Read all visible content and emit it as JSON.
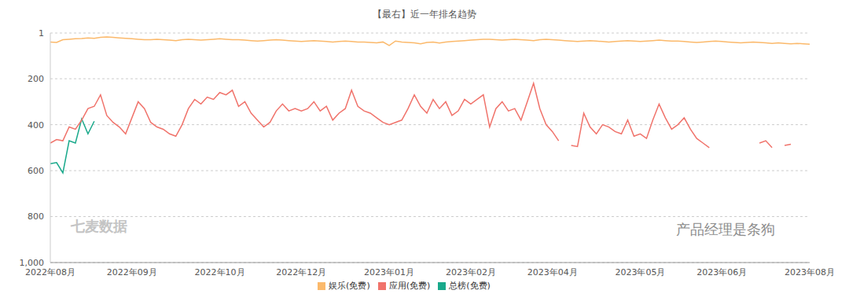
{
  "chart_data": {
    "type": "line",
    "title": "【最右】近一年排名趋势",
    "annotations": [
      "七麦数据",
      "产品经理是条狗"
    ],
    "categories": [
      "2022年08月",
      null,
      null,
      null,
      null,
      null,
      null,
      null,
      null,
      null,
      null,
      null,
      null,
      "2022年09月",
      null,
      null,
      null,
      null,
      null,
      null,
      null,
      null,
      null,
      null,
      null,
      null,
      null,
      "2022年10月",
      null,
      null,
      null,
      null,
      null,
      null,
      null,
      null,
      null,
      null,
      null,
      null,
      "2022年12月",
      null,
      null,
      null,
      null,
      null,
      null,
      null,
      null,
      null,
      null,
      null,
      null,
      null,
      "2023年01月",
      null,
      null,
      null,
      null,
      null,
      null,
      null,
      null,
      null,
      null,
      null,
      null,
      "2023年02月",
      null,
      null,
      null,
      null,
      null,
      null,
      null,
      null,
      null,
      null,
      null,
      null,
      "2023年04月",
      null,
      null,
      null,
      null,
      null,
      null,
      null,
      null,
      null,
      null,
      null,
      null,
      null,
      "2023年05月",
      null,
      null,
      null,
      null,
      null,
      null,
      null,
      null,
      null,
      null,
      null,
      null,
      "2023年06月",
      null,
      null,
      null,
      null,
      null,
      null,
      null,
      null,
      null,
      null,
      null,
      null,
      null,
      "2023年08月"
    ],
    "series": [
      {
        "name": "总榜(免费)",
        "color": "#19a98b",
        "values": [
          570,
          565,
          610,
          470,
          480,
          375,
          440,
          385,
          null,
          null,
          null,
          null,
          null,
          null,
          null,
          null,
          null,
          null,
          null,
          null,
          null,
          null,
          null,
          null,
          null,
          null,
          null,
          null,
          null,
          null,
          null,
          null,
          null,
          null,
          null,
          null,
          null,
          null,
          null,
          null,
          null,
          null,
          null,
          null,
          null,
          null,
          null,
          null,
          null,
          null,
          null,
          null,
          null,
          null,
          null,
          null,
          null,
          null,
          null,
          null,
          null,
          null,
          null,
          null,
          null,
          null,
          null,
          null,
          null,
          null,
          null,
          null,
          null,
          null,
          null,
          null,
          null,
          null,
          null,
          null,
          null,
          null,
          null,
          null,
          null,
          null,
          null,
          null,
          null,
          null,
          null,
          null,
          null,
          null,
          null,
          null,
          null,
          null,
          null,
          null,
          null,
          null,
          null,
          null,
          null,
          null,
          null,
          null,
          null,
          null,
          null,
          null,
          null,
          null,
          null,
          null,
          null,
          null,
          null,
          null,
          null,
          null
        ]
      },
      {
        "name": "应用(免费)",
        "color": "#f0736b",
        "values": [
          480,
          465,
          470,
          410,
          420,
          380,
          330,
          320,
          270,
          360,
          390,
          410,
          440,
          370,
          300,
          330,
          390,
          410,
          420,
          440,
          450,
          400,
          330,
          290,
          310,
          280,
          290,
          260,
          270,
          250,
          320,
          300,
          350,
          380,
          410,
          390,
          340,
          310,
          340,
          330,
          340,
          330,
          300,
          340,
          320,
          380,
          350,
          330,
          250,
          320,
          340,
          350,
          370,
          390,
          400,
          390,
          380,
          330,
          270,
          320,
          350,
          290,
          330,
          300,
          360,
          340,
          290,
          310,
          290,
          270,
          410,
          330,
          300,
          340,
          330,
          380,
          300,
          220,
          330,
          400,
          430,
          470,
          null,
          490,
          495,
          350,
          410,
          440,
          400,
          410,
          430,
          440,
          380,
          450,
          440,
          460,
          380,
          310,
          370,
          420,
          400,
          370,
          420,
          460,
          480,
          500,
          null,
          null,
          null,
          null,
          null,
          null,
          null,
          480,
          470,
          500,
          null,
          490,
          485,
          null,
          null,
          null
        ]
      },
      {
        "name": "娱乐(免费)",
        "color": "#fbb96b",
        "values": [
          40,
          42,
          30,
          28,
          26,
          25,
          22,
          24,
          20,
          18,
          20,
          22,
          24,
          26,
          28,
          30,
          30,
          28,
          30,
          32,
          34,
          30,
          28,
          30,
          32,
          30,
          28,
          26,
          28,
          30,
          30,
          32,
          34,
          36,
          34,
          32,
          30,
          32,
          34,
          36,
          38,
          36,
          34,
          36,
          38,
          40,
          38,
          36,
          38,
          40,
          40,
          42,
          44,
          40,
          55,
          36,
          40,
          42,
          44,
          48,
          42,
          40,
          45,
          40,
          38,
          36,
          34,
          32,
          30,
          28,
          28,
          30,
          32,
          30,
          28,
          30,
          32,
          34,
          30,
          28,
          30,
          32,
          34,
          36,
          38,
          36,
          34,
          36,
          38,
          40,
          38,
          36,
          34,
          36,
          38,
          36,
          34,
          32,
          34,
          36,
          36,
          38,
          40,
          42,
          40,
          38,
          36,
          38,
          40,
          42,
          44,
          42,
          40,
          42,
          44,
          46,
          44,
          46,
          48,
          46,
          48,
          50
        ]
      }
    ],
    "ylim": [
      1000,
      1
    ],
    "yticks": [
      1,
      200,
      400,
      600,
      800,
      {
        "value": 1000,
        "label": "1,000"
      }
    ],
    "grid": true,
    "legend": "bottom",
    "marker": "none",
    "line_style": "solid"
  }
}
